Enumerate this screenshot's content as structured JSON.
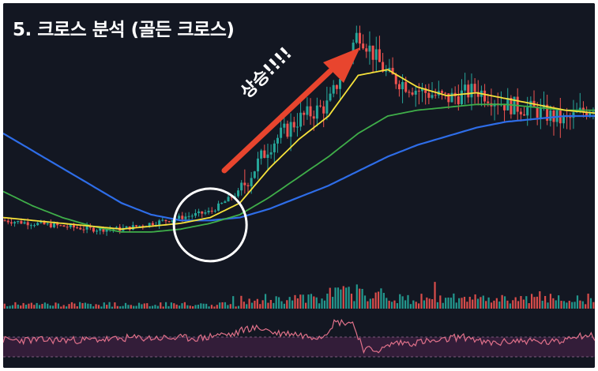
{
  "header": {
    "title": "5. 크로스 분석 (골든 크로스)"
  },
  "annotation": {
    "text": "상승!!!!",
    "arrow_color": "#e8452e"
  },
  "colors": {
    "background": "#131722",
    "candle_up": "#26a69a",
    "candle_down": "#ef5350",
    "ma_short": "#f6e23b",
    "ma_mid": "#3fae49",
    "ma_long": "#2e6de8",
    "highlight_circle": "#ffffff",
    "rsi_line": "#e0718a",
    "rsi_band": "#3a1f3d"
  },
  "chart_data": {
    "type": "line",
    "chart_kind": "candlestick with moving averages, volume and RSI panels",
    "grid": false,
    "legend": "none",
    "x": [
      0,
      5,
      10,
      15,
      20,
      25,
      30,
      35,
      40,
      45,
      50,
      55,
      60,
      65,
      70,
      75,
      80,
      85,
      90,
      95,
      100
    ],
    "series": [
      {
        "role": "price",
        "values": [
          30,
          29,
          28,
          27,
          27,
          29,
          31,
          33,
          40,
          56,
          65,
          70,
          95,
          80,
          75,
          72,
          75,
          70,
          68,
          64,
          70
        ]
      },
      {
        "role": "short_ma",
        "values": [
          31,
          30,
          29,
          28,
          27,
          28,
          29,
          31,
          36,
          48,
          58,
          66,
          80,
          82,
          76,
          73,
          74,
          72,
          70,
          68,
          67
        ]
      },
      {
        "role": "mid_ma",
        "values": [
          40,
          35,
          31,
          28,
          26,
          26,
          27,
          29,
          32,
          38,
          45,
          52,
          60,
          66,
          68,
          69,
          70,
          70,
          69,
          68,
          68
        ]
      },
      {
        "role": "long_ma",
        "values": [
          60,
          54,
          48,
          42,
          36,
          32,
          30,
          30,
          31,
          34,
          38,
          42,
          47,
          52,
          56,
          59,
          62,
          64,
          65,
          66,
          66
        ]
      }
    ],
    "annotation": {
      "golden_cross_x": 35,
      "trend": "up"
    }
  }
}
